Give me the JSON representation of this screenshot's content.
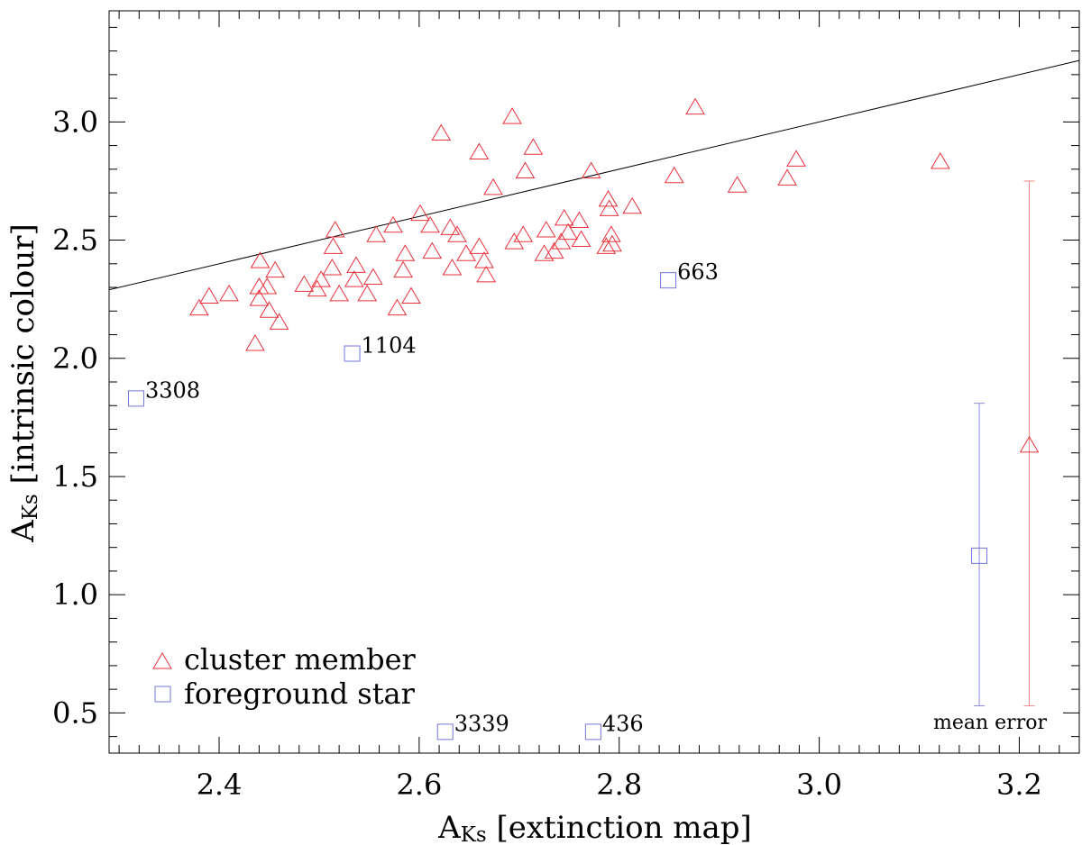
{
  "chart_data": {
    "type": "scatter",
    "xlabel": {
      "main": "A",
      "sub": "Ks",
      "rest": " [extinction map]"
    },
    "ylabel": {
      "main": "A",
      "sub": "Ks",
      "rest": " [intrinsic colour]"
    },
    "xlim": [
      2.29,
      3.26
    ],
    "ylim": [
      0.33,
      3.47
    ],
    "xticks": [
      {
        "v": 2.4,
        "label": "2.4"
      },
      {
        "v": 2.6,
        "label": "2.6"
      },
      {
        "v": 2.8,
        "label": "2.8"
      },
      {
        "v": 3.0,
        "label": "3.0"
      },
      {
        "v": 3.2,
        "label": "3.2"
      }
    ],
    "yticks": [
      {
        "v": 0.5,
        "label": "0.5"
      },
      {
        "v": 1.0,
        "label": "1.0"
      },
      {
        "v": 1.5,
        "label": "1.5"
      },
      {
        "v": 2.0,
        "label": "2.0"
      },
      {
        "v": 2.5,
        "label": "2.5"
      },
      {
        "v": 3.0,
        "label": "3.0"
      }
    ],
    "x_minor_step": 0.02,
    "y_minor_step": 0.1,
    "grid": false,
    "reference_line": [
      [
        2.29,
        2.29
      ],
      [
        3.26,
        3.26
      ]
    ],
    "series": [
      {
        "name": "cluster member",
        "marker": "triangle",
        "color": "#e8323c",
        "points": [
          [
            2.38,
            2.21
          ],
          [
            2.39,
            2.26
          ],
          [
            2.41,
            2.27
          ],
          [
            2.436,
            2.06
          ],
          [
            2.44,
            2.25
          ],
          [
            2.44,
            2.3
          ],
          [
            2.441,
            2.41
          ],
          [
            2.448,
            2.3
          ],
          [
            2.45,
            2.2
          ],
          [
            2.456,
            2.37
          ],
          [
            2.46,
            2.15
          ],
          [
            2.485,
            2.31
          ],
          [
            2.498,
            2.29
          ],
          [
            2.502,
            2.33
          ],
          [
            2.513,
            2.38
          ],
          [
            2.514,
            2.47
          ],
          [
            2.516,
            2.54
          ],
          [
            2.52,
            2.27
          ],
          [
            2.535,
            2.33
          ],
          [
            2.537,
            2.39
          ],
          [
            2.548,
            2.27
          ],
          [
            2.554,
            2.34
          ],
          [
            2.557,
            2.52
          ],
          [
            2.574,
            2.56
          ],
          [
            2.578,
            2.21
          ],
          [
            2.584,
            2.37
          ],
          [
            2.586,
            2.44
          ],
          [
            2.592,
            2.26
          ],
          [
            2.601,
            2.61
          ],
          [
            2.611,
            2.56
          ],
          [
            2.613,
            2.45
          ],
          [
            2.622,
            2.95
          ],
          [
            2.631,
            2.55
          ],
          [
            2.633,
            2.38
          ],
          [
            2.638,
            2.52
          ],
          [
            2.647,
            2.44
          ],
          [
            2.66,
            2.87
          ],
          [
            2.66,
            2.47
          ],
          [
            2.665,
            2.41
          ],
          [
            2.667,
            2.35
          ],
          [
            2.674,
            2.72
          ],
          [
            2.693,
            3.02
          ],
          [
            2.695,
            2.49
          ],
          [
            2.704,
            2.52
          ],
          [
            2.706,
            2.79
          ],
          [
            2.714,
            2.89
          ],
          [
            2.725,
            2.44
          ],
          [
            2.727,
            2.54
          ],
          [
            2.735,
            2.45
          ],
          [
            2.742,
            2.49
          ],
          [
            2.745,
            2.59
          ],
          [
            2.749,
            2.53
          ],
          [
            2.76,
            2.58
          ],
          [
            2.762,
            2.5
          ],
          [
            2.772,
            2.79
          ],
          [
            2.787,
            2.47
          ],
          [
            2.789,
            2.67
          ],
          [
            2.79,
            2.63
          ],
          [
            2.792,
            2.52
          ],
          [
            2.793,
            2.48
          ],
          [
            2.813,
            2.64
          ],
          [
            2.855,
            2.77
          ],
          [
            2.876,
            3.06
          ],
          [
            2.918,
            2.73
          ],
          [
            2.968,
            2.76
          ],
          [
            2.977,
            2.84
          ],
          [
            3.121,
            2.83
          ]
        ]
      },
      {
        "name": "foreground star",
        "marker": "square",
        "color": "#7575d8",
        "points": [
          {
            "x": 2.317,
            "y": 1.83,
            "label": "3308"
          },
          {
            "x": 2.533,
            "y": 2.02,
            "label": "1104"
          },
          {
            "x": 2.626,
            "y": 0.42,
            "label": "3339"
          },
          {
            "x": 2.774,
            "y": 0.42,
            "label": "436"
          },
          {
            "x": 2.849,
            "y": 2.33,
            "label": "663"
          }
        ]
      }
    ],
    "error_bars": {
      "label": "mean error",
      "items": [
        {
          "series": "foreground star",
          "x": 3.16,
          "y": 1.165,
          "low": 0.53,
          "high": 1.81
        },
        {
          "series": "cluster member",
          "x": 3.21,
          "y": 1.63,
          "low": 0.53,
          "high": 2.75
        }
      ]
    },
    "legend": {
      "position": "bottom-left",
      "entries": [
        {
          "marker": "triangle",
          "color": "#e8323c",
          "label": "cluster member"
        },
        {
          "marker": "square",
          "color": "#7575d8",
          "label": "foreground star"
        }
      ]
    }
  }
}
